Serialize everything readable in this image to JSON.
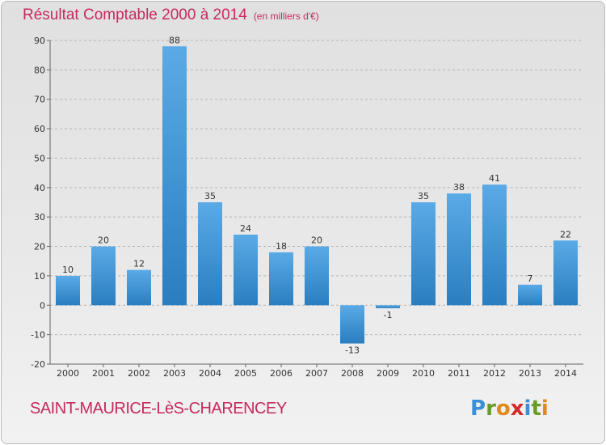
{
  "title": "Résultat Comptable 2000 à 2014",
  "title_unit": "(en milliers d'€)",
  "commune": "SAINT-MAURICE-LèS-CHARENCEY",
  "logo": {
    "text": "Proxiti",
    "letters": [
      {
        "ch": "P",
        "color": "#3a8fd6"
      },
      {
        "ch": "r",
        "color": "#6a9a2a"
      },
      {
        "ch": "o",
        "color": "#e08a1a"
      },
      {
        "ch": "x",
        "color": "#d42a2a"
      },
      {
        "ch": "i",
        "color": "#3a8fd6"
      },
      {
        "ch": "t",
        "color": "#6a9a2a"
      },
      {
        "ch": "i",
        "color": "#e08a1a"
      }
    ]
  },
  "colors": {
    "bar_light": "#5aaae6",
    "bar_dark": "#2a7ec0",
    "title": "#c62a5e",
    "grid": "#b5b5b5"
  },
  "chart_data": {
    "type": "bar",
    "categories": [
      "2000",
      "2001",
      "2002",
      "2003",
      "2004",
      "2005",
      "2006",
      "2007",
      "2008",
      "2009",
      "2010",
      "2011",
      "2012",
      "2013",
      "2014"
    ],
    "values": [
      10,
      20,
      12,
      88,
      35,
      24,
      18,
      20,
      -13,
      -1,
      35,
      38,
      41,
      7,
      22
    ],
    "value_labels": [
      "10",
      "20",
      "12",
      "88",
      "35",
      "24",
      "18",
      "20",
      "-13",
      "-1",
      "35",
      "38",
      "41",
      "7",
      "22"
    ],
    "title": "Résultat Comptable 2000 à 2014",
    "xlabel": "",
    "ylabel": "",
    "ylim": [
      -20,
      90
    ],
    "yticks": [
      -20,
      -10,
      0,
      10,
      20,
      30,
      40,
      50,
      60,
      70,
      80,
      90
    ],
    "grid": true,
    "grid_style": "dashed horizontal",
    "legend": "none"
  }
}
